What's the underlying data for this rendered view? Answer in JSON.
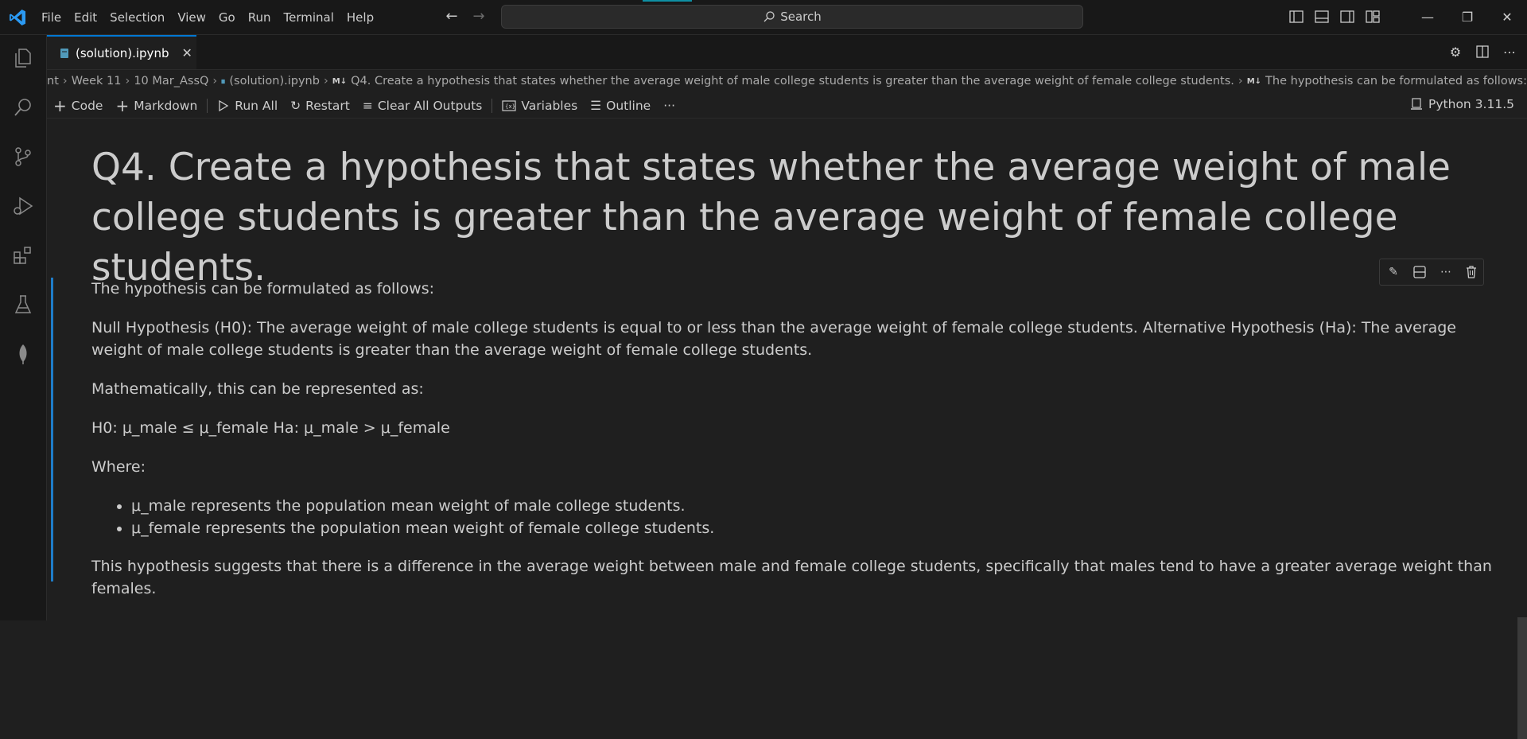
{
  "menu": [
    "File",
    "Edit",
    "Selection",
    "View",
    "Go",
    "Run",
    "Terminal",
    "Help"
  ],
  "search": {
    "label": "Search"
  },
  "tab": {
    "label": "(solution).ipynb"
  },
  "breadcrumb": {
    "items": [
      "nt",
      "Week 11",
      "10 Mar_AssQ",
      "(solution).ipynb",
      "Q4. Create a hypothesis that states whether the average weight of male college students is greater than the average weight of female college students.",
      "The hypothesis can be formulated as follows:"
    ]
  },
  "toolbar": {
    "code": "Code",
    "markdown": "Markdown",
    "run_all": "Run All",
    "restart": "Restart",
    "clear": "Clear All Outputs",
    "variables": "Variables",
    "outline": "Outline",
    "more": "···",
    "kernel": "Python 3.11.5"
  },
  "content": {
    "heading": "Q4. Create a hypothesis that states whether the average weight of male college students is greater than the average weight of female college students.",
    "p1": "The hypothesis can be formulated as follows:",
    "p2": "Null Hypothesis (H0): The average weight of male college students is equal to or less than the average weight of female college students. Alternative Hypothesis (Ha): The average weight of male college students is greater than the average weight of female college students.",
    "p3": "Mathematically, this can be represented as:",
    "p4": "H0: μ_male ≤ μ_female Ha: μ_male > μ_female",
    "p5": "Where:",
    "bullets": [
      "μ_male represents the population mean weight of male college students.",
      "μ_female represents the population mean weight of female college students."
    ],
    "p6": "This hypothesis suggests that there is a difference in the average weight between male and female college students, specifically that males tend to have a greater average weight than females."
  },
  "colors": {
    "accent": "#0078d4",
    "cell_bar": "#1e7cc8",
    "background": "#1f1f1f"
  }
}
